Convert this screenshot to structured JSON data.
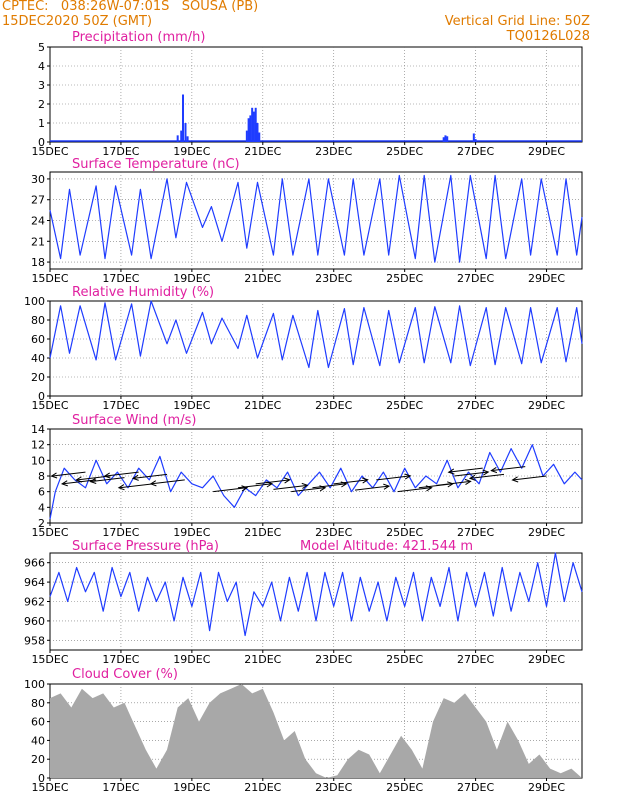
{
  "header": {
    "line1": "CPTEC:   038:26W-07:01S   SOUSA (PB)",
    "line2": "15DEC2020 50Z (GMT)",
    "right1": "Vertical Grid Line: 50Z",
    "right2": "TQ0126L028"
  },
  "colors": {
    "title": "#e020a0",
    "header": "#e07b00",
    "series": "#1f3cff",
    "cloud": "#a8a8a8",
    "arrow": "#000000",
    "frame": "#000000",
    "grid": "#777777"
  },
  "x_ticks": [
    "15DEC",
    "17DEC",
    "19DEC",
    "21DEC",
    "23DEC",
    "25DEC",
    "27DEC",
    "29DEC"
  ],
  "x_range": [
    0,
    15
  ],
  "chart_data": [
    {
      "id": "precip",
      "type": "bar",
      "title": "Precipitation (mm/h)",
      "xlabel": "",
      "ylabel": "",
      "ylim": [
        0,
        5
      ],
      "yticks": [
        0,
        1,
        2,
        3,
        4,
        5
      ],
      "yticks_labels": [
        "0",
        "1",
        "2",
        "3",
        "4",
        "5"
      ],
      "events": [
        {
          "day": 3.6,
          "value": 0.35
        },
        {
          "day": 3.7,
          "value": 0.6
        },
        {
          "day": 3.75,
          "value": 2.5
        },
        {
          "day": 3.82,
          "value": 1.0
        },
        {
          "day": 3.88,
          "value": 0.3
        },
        {
          "day": 5.55,
          "value": 0.6
        },
        {
          "day": 5.6,
          "value": 1.25
        },
        {
          "day": 5.65,
          "value": 1.4
        },
        {
          "day": 5.7,
          "value": 1.8
        },
        {
          "day": 5.75,
          "value": 1.6
        },
        {
          "day": 5.8,
          "value": 1.8
        },
        {
          "day": 5.85,
          "value": 1.0
        },
        {
          "day": 5.9,
          "value": 0.5
        },
        {
          "day": 11.1,
          "value": 0.25
        },
        {
          "day": 11.15,
          "value": 0.35
        },
        {
          "day": 11.2,
          "value": 0.3
        },
        {
          "day": 11.95,
          "value": 0.45
        },
        {
          "day": 12.0,
          "value": 0.15
        }
      ]
    },
    {
      "id": "temp",
      "type": "line",
      "title": "Surface Temperature (nC)",
      "xlabel": "",
      "ylabel": "",
      "ylim": [
        17,
        31
      ],
      "yticks": [
        18,
        21,
        24,
        27,
        30
      ],
      "yticks_labels": [
        "18",
        "21",
        "24",
        "27",
        "30"
      ],
      "x": [
        0,
        0.3,
        0.55,
        0.85,
        1.3,
        1.55,
        1.85,
        2.3,
        2.55,
        2.85,
        3.3,
        3.55,
        3.85,
        4.3,
        4.55,
        4.85,
        5.3,
        5.55,
        5.85,
        6.3,
        6.55,
        6.85,
        7.3,
        7.55,
        7.85,
        8.3,
        8.55,
        8.85,
        9.3,
        9.55,
        9.85,
        10.3,
        10.55,
        10.85,
        11.3,
        11.55,
        11.85,
        12.3,
        12.55,
        12.85,
        13.3,
        13.55,
        13.85,
        14.3,
        14.55,
        14.85,
        15
      ],
      "y": [
        25.5,
        18.5,
        28.5,
        19,
        29,
        18.5,
        29,
        19,
        28.5,
        18.5,
        30,
        21.5,
        29.5,
        23,
        26,
        21,
        29.5,
        20,
        29.5,
        19,
        30,
        19,
        30,
        19,
        30,
        19,
        30,
        19,
        30,
        19,
        30.5,
        18.5,
        30.5,
        18,
        30.5,
        18,
        30.5,
        18.5,
        30.5,
        18.5,
        30,
        19,
        30,
        19,
        30,
        19,
        24.5
      ]
    },
    {
      "id": "rh",
      "type": "line",
      "title": "Relative Humidity (%)",
      "xlabel": "",
      "ylabel": "",
      "ylim": [
        0,
        100
      ],
      "yticks": [
        0,
        20,
        40,
        60,
        80,
        100
      ],
      "yticks_labels": [
        "0",
        "20",
        "40",
        "60",
        "80",
        "100"
      ],
      "x": [
        0,
        0.3,
        0.55,
        0.85,
        1.3,
        1.55,
        1.85,
        2.3,
        2.55,
        2.85,
        3.3,
        3.55,
        3.85,
        4.3,
        4.55,
        4.85,
        5.3,
        5.55,
        5.85,
        6.3,
        6.55,
        6.85,
        7.3,
        7.55,
        7.85,
        8.3,
        8.55,
        8.85,
        9.3,
        9.55,
        9.85,
        10.3,
        10.55,
        10.85,
        11.3,
        11.55,
        11.85,
        12.3,
        12.55,
        12.85,
        13.3,
        13.55,
        13.85,
        14.3,
        14.55,
        14.85,
        15
      ],
      "y": [
        40,
        95,
        45,
        95,
        38,
        98,
        38,
        97,
        42,
        100,
        55,
        80,
        45,
        88,
        55,
        82,
        50,
        85,
        40,
        87,
        38,
        85,
        30,
        90,
        30,
        92,
        33,
        93,
        32,
        90,
        35,
        93,
        35,
        94,
        35,
        95,
        32,
        93,
        33,
        93,
        34,
        93,
        35,
        93,
        36,
        93,
        55
      ]
    },
    {
      "id": "wind",
      "type": "line",
      "title": "Surface Wind (m/s)",
      "xlabel": "",
      "ylabel": "",
      "ylim": [
        2,
        14
      ],
      "yticks": [
        2,
        4,
        6,
        8,
        10,
        12,
        14
      ],
      "yticks_labels": [
        "2",
        "4",
        "6",
        "8",
        "10",
        "12",
        "14"
      ],
      "x": [
        0,
        0.15,
        0.4,
        0.7,
        1.0,
        1.3,
        1.6,
        1.9,
        2.2,
        2.5,
        2.8,
        3.1,
        3.4,
        3.7,
        4.0,
        4.3,
        4.6,
        4.9,
        5.2,
        5.5,
        5.8,
        6.1,
        6.4,
        6.7,
        7.0,
        7.3,
        7.6,
        7.9,
        8.2,
        8.5,
        8.8,
        9.1,
        9.4,
        9.7,
        10.0,
        10.3,
        10.6,
        10.9,
        11.2,
        11.5,
        11.8,
        12.1,
        12.4,
        12.7,
        13.0,
        13.3,
        13.6,
        13.9,
        14.2,
        14.5,
        14.8,
        15
      ],
      "y": [
        2.5,
        6,
        9,
        7.5,
        6.5,
        10,
        7,
        8.5,
        6.5,
        9,
        7.5,
        10.5,
        6,
        8.5,
        7,
        6.5,
        8,
        5.5,
        4,
        6.5,
        5.5,
        7.5,
        6.5,
        8.5,
        5.5,
        7,
        8.5,
        6.5,
        9,
        6,
        8,
        6.5,
        8.5,
        6,
        9,
        6.5,
        8,
        7,
        10,
        6.5,
        8.5,
        7,
        11,
        8.5,
        11.5,
        9,
        12,
        8,
        9.5,
        7,
        8.5,
        7.5
      ],
      "arrows_dir": [
        -1,
        -1,
        -1,
        -1,
        -1,
        -1,
        -1,
        -1,
        1,
        1,
        1,
        1,
        1,
        1,
        1,
        1,
        1,
        1,
        1,
        1,
        1,
        -1,
        -1,
        -1,
        -1
      ],
      "arrows_x": [
        1.0,
        1.3,
        1.7,
        2.1,
        2.5,
        2.9,
        3.3,
        3.8,
        4.6,
        5.3,
        5.8,
        6.3,
        6.8,
        7.4,
        8.0,
        8.6,
        9.2,
        9.8,
        10.4,
        10.9,
        11.4,
        12.2,
        12.8,
        13.4,
        14.0
      ],
      "arrows_y": [
        8.5,
        7.5,
        8,
        7.8,
        8.5,
        7,
        8.2,
        7.5,
        6,
        6.5,
        7,
        6.3,
        6,
        6.5,
        7,
        6.2,
        7.5,
        6,
        6.5,
        6.8,
        8,
        9,
        8.2,
        9.2,
        8
      ]
    },
    {
      "id": "pressure",
      "type": "line",
      "title": "Surface Pressure (hPa)",
      "subtitle": "Model Altitude: 421.544 m",
      "xlabel": "",
      "ylabel": "",
      "ylim": [
        957,
        967
      ],
      "yticks": [
        958,
        960,
        962,
        964,
        966
      ],
      "yticks_labels": [
        "958",
        "960",
        "962",
        "964",
        "966"
      ],
      "x": [
        0,
        0.25,
        0.5,
        0.75,
        1.0,
        1.25,
        1.5,
        1.75,
        2.0,
        2.25,
        2.5,
        2.75,
        3.0,
        3.25,
        3.5,
        3.75,
        4.0,
        4.25,
        4.5,
        4.75,
        5.0,
        5.25,
        5.5,
        5.75,
        6.0,
        6.25,
        6.5,
        6.75,
        7.0,
        7.25,
        7.5,
        7.75,
        8.0,
        8.25,
        8.5,
        8.75,
        9.0,
        9.25,
        9.5,
        9.75,
        10.0,
        10.25,
        10.5,
        10.75,
        11.0,
        11.25,
        11.5,
        11.75,
        12.0,
        12.25,
        12.5,
        12.75,
        13.0,
        13.25,
        13.5,
        13.75,
        14.0,
        14.25,
        14.5,
        14.75,
        15
      ],
      "y": [
        962.5,
        965,
        962,
        965.5,
        963,
        965,
        961,
        965.5,
        962.5,
        965,
        961,
        964.5,
        962,
        964,
        960,
        964.5,
        961.5,
        965,
        959,
        965,
        962,
        964,
        958.5,
        963,
        961.5,
        964,
        960,
        964.5,
        961,
        965,
        960,
        965,
        961.5,
        965,
        960,
        964.5,
        961,
        964,
        960,
        964.5,
        961.5,
        965,
        960,
        964.5,
        961.5,
        965.5,
        960,
        965,
        961.5,
        965,
        960.5,
        965.5,
        961,
        965,
        962,
        966,
        961.5,
        967,
        962,
        966,
        963
      ]
    },
    {
      "id": "cloud",
      "type": "area",
      "title": "Cloud Cover (%)",
      "xlabel": "",
      "ylabel": "",
      "ylim": [
        0,
        100
      ],
      "yticks": [
        0,
        20,
        40,
        60,
        80,
        100
      ],
      "yticks_labels": [
        "0",
        "20",
        "40",
        "60",
        "80",
        "100"
      ],
      "x": [
        0,
        0.3,
        0.6,
        0.9,
        1.2,
        1.5,
        1.8,
        2.1,
        2.4,
        2.7,
        3.0,
        3.3,
        3.6,
        3.9,
        4.2,
        4.5,
        4.8,
        5.1,
        5.4,
        5.7,
        6.0,
        6.3,
        6.6,
        6.9,
        7.2,
        7.5,
        7.8,
        8.1,
        8.4,
        8.7,
        9.0,
        9.3,
        9.6,
        9.9,
        10.2,
        10.5,
        10.8,
        11.1,
        11.4,
        11.7,
        12.0,
        12.3,
        12.6,
        12.9,
        13.2,
        13.5,
        13.8,
        14.1,
        14.4,
        14.7,
        15
      ],
      "y": [
        85,
        90,
        75,
        95,
        85,
        90,
        75,
        80,
        55,
        30,
        10,
        30,
        75,
        85,
        60,
        80,
        90,
        95,
        100,
        90,
        95,
        70,
        40,
        50,
        20,
        5,
        0,
        3,
        20,
        30,
        25,
        5,
        25,
        45,
        30,
        10,
        60,
        85,
        80,
        90,
        75,
        60,
        30,
        60,
        40,
        15,
        25,
        10,
        5,
        10,
        0
      ]
    }
  ]
}
